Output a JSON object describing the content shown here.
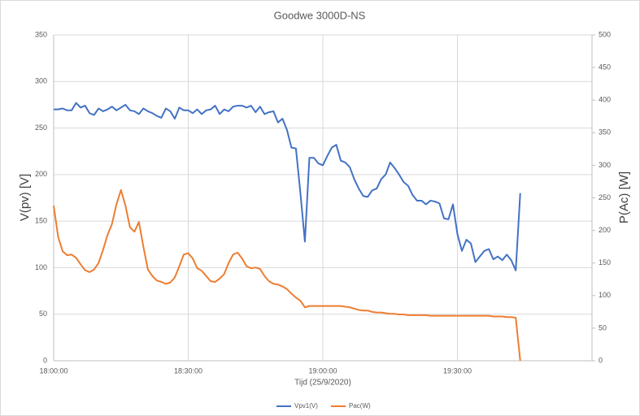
{
  "chart_data": {
    "type": "line",
    "title": "Goodwe 3000D-NS",
    "x_label": "Tijd (25/9/2020)",
    "y_label": "V(pv) [V]",
    "y2_label": "P(Ac) [W]",
    "x": [
      "18:00:00",
      "18:01:00",
      "18:02:00",
      "18:03:00",
      "18:04:00",
      "18:05:00",
      "18:06:00",
      "18:07:00",
      "18:08:00",
      "18:09:00",
      "18:10:00",
      "18:11:00",
      "18:12:00",
      "18:13:00",
      "18:14:00",
      "18:15:00",
      "18:16:00",
      "18:17:00",
      "18:18:00",
      "18:19:00",
      "18:20:00",
      "18:21:00",
      "18:22:00",
      "18:23:00",
      "18:24:00",
      "18:25:00",
      "18:26:00",
      "18:27:00",
      "18:28:00",
      "18:29:00",
      "18:30:00",
      "18:31:00",
      "18:32:00",
      "18:33:00",
      "18:34:00",
      "18:35:00",
      "18:36:00",
      "18:37:00",
      "18:38:00",
      "18:39:00",
      "18:40:00",
      "18:41:00",
      "18:42:00",
      "18:43:00",
      "18:44:00",
      "18:45:00",
      "18:46:00",
      "18:47:00",
      "18:48:00",
      "18:49:00",
      "18:50:00",
      "18:51:00",
      "18:52:00",
      "18:53:00",
      "18:54:00",
      "18:55:00",
      "18:56:00",
      "18:57:00",
      "18:58:00",
      "18:59:00",
      "19:00:00",
      "19:01:00",
      "19:02:00",
      "19:03:00",
      "19:04:00",
      "19:05:00",
      "19:06:00",
      "19:07:00",
      "19:08:00",
      "19:09:00",
      "19:10:00",
      "19:11:00",
      "19:12:00",
      "19:13:00",
      "19:14:00",
      "19:15:00",
      "19:16:00",
      "19:17:00",
      "19:18:00",
      "19:19:00",
      "19:20:00",
      "19:21:00",
      "19:22:00",
      "19:23:00",
      "19:24:00",
      "19:25:00",
      "19:26:00",
      "19:27:00",
      "19:28:00",
      "19:29:00",
      "19:30:00",
      "19:31:00",
      "19:32:00",
      "19:33:00",
      "19:34:00",
      "19:35:00",
      "19:36:00",
      "19:37:00",
      "19:38:00",
      "19:39:00",
      "19:40:00",
      "19:41:00",
      "19:42:00",
      "19:43:00",
      "19:44:00"
    ],
    "series": [
      {
        "name": "Vpv1(V)",
        "color": "#4472c4",
        "axis": "y",
        "values": [
          270,
          270,
          271,
          269,
          269,
          277,
          272,
          274,
          266,
          264,
          271,
          268,
          270,
          273,
          269,
          272,
          275,
          269,
          268,
          265,
          271,
          268,
          266,
          263,
          261,
          271,
          268,
          260,
          272,
          269,
          269,
          266,
          270,
          265,
          269,
          270,
          274,
          265,
          270,
          268,
          273,
          274,
          274,
          272,
          274,
          267,
          273,
          265,
          267,
          268,
          256,
          260,
          248,
          229,
          228,
          180,
          128,
          218,
          218,
          212,
          210,
          220,
          229,
          232,
          215,
          213,
          208,
          195,
          185,
          177,
          176,
          183,
          185,
          195,
          200,
          213,
          207,
          200,
          192,
          188,
          178,
          172,
          172,
          168,
          172,
          171,
          169,
          153,
          152,
          168,
          136,
          118,
          130,
          126,
          106,
          112,
          118,
          120,
          109,
          112,
          108,
          114,
          108,
          97,
          180
        ]
      },
      {
        "name": "Pac(W)",
        "color": "#ed7d31",
        "axis": "y2",
        "values": [
          238,
          190,
          168,
          162,
          163,
          158,
          148,
          139,
          136,
          140,
          150,
          170,
          193,
          210,
          240,
          262,
          238,
          205,
          198,
          213,
          175,
          140,
          130,
          123,
          121,
          118,
          120,
          128,
          145,
          163,
          165,
          157,
          142,
          138,
          130,
          122,
          121,
          126,
          133,
          150,
          163,
          166,
          157,
          145,
          142,
          143,
          141,
          130,
          122,
          118,
          117,
          114,
          110,
          103,
          97,
          92,
          82,
          84,
          84,
          84,
          84,
          84,
          84,
          84,
          84,
          83,
          82,
          80,
          78,
          77,
          77,
          75,
          74,
          74,
          73,
          72,
          72,
          71,
          71,
          70,
          70,
          70,
          70,
          70,
          69,
          69,
          69,
          69,
          69,
          69,
          69,
          69,
          69,
          69,
          69,
          69,
          69,
          69,
          68,
          68,
          68,
          67,
          67,
          66,
          0
        ]
      }
    ],
    "xlim": [
      "18:00:00",
      "20:00:00"
    ],
    "xticks": [
      "18:00:00",
      "18:30:00",
      "19:00:00",
      "19:30:00"
    ],
    "ylim": [
      0,
      350
    ],
    "yticks": [
      0,
      50,
      100,
      150,
      200,
      250,
      300,
      350
    ],
    "y2lim": [
      0,
      500
    ],
    "y2ticks": [
      0,
      50,
      100,
      150,
      200,
      250,
      300,
      350,
      400,
      450,
      500
    ],
    "grid": true,
    "legend": "bottom"
  }
}
